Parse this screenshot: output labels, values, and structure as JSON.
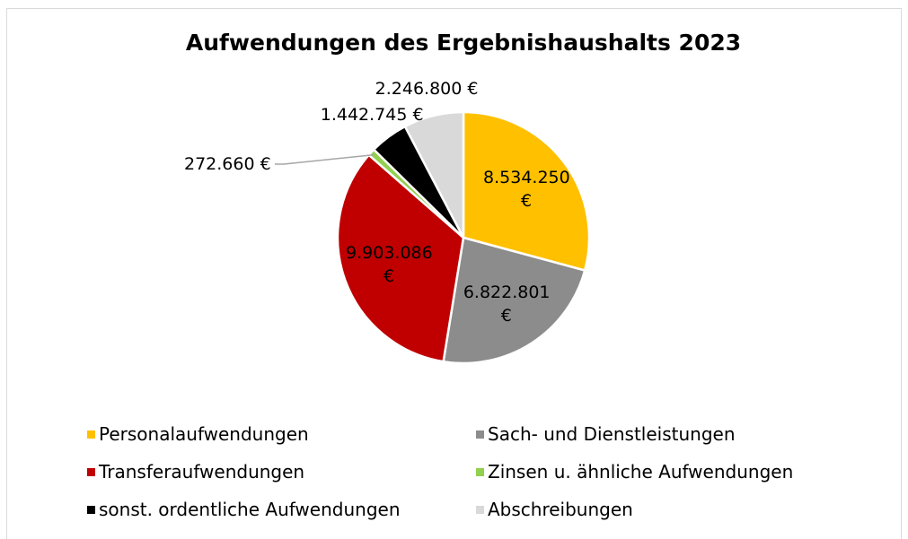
{
  "chart_data": {
    "type": "pie",
    "title": "Aufwendungen des Ergebnishaushalts 2023",
    "categories": [
      "Personalaufwendungen",
      "Sach- und Dienstleistungen",
      "Transferaufwendungen",
      "Zinsen u. ähnliche Aufwendungen",
      "sonst. ordentliche Aufwendungen",
      "Abschreibungen"
    ],
    "values": [
      8534250,
      6822801,
      9903086,
      272660,
      1442745,
      2246800
    ],
    "value_labels": [
      "8.534.250 €",
      "6.822.801 €",
      "9.903.086 €",
      "272.660 €",
      "1.442.745 €",
      "2.246.800 €"
    ],
    "colors": [
      "#FFC000",
      "#8C8C8C",
      "#C00000",
      "#92D050",
      "#000000",
      "#D9D9D9"
    ],
    "legend": "bottom"
  }
}
